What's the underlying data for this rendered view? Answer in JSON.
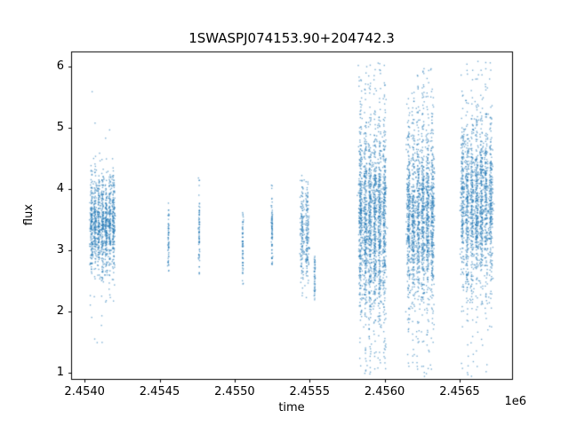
{
  "figure": {
    "background": "#ffffff"
  },
  "chart_data": {
    "type": "scatter",
    "title": "1SWASPJ074153.90+204742.3",
    "xlabel": "time",
    "ylabel": "flux",
    "x_offset_label": "1e6",
    "xlim": [
      2.45391,
      2.45685
    ],
    "ylim": [
      0.9,
      6.25
    ],
    "xticks": [
      {
        "value": 2.454,
        "label": "2.4540"
      },
      {
        "value": 2.4545,
        "label": "2.4545"
      },
      {
        "value": 2.455,
        "label": "2.4550"
      },
      {
        "value": 2.4555,
        "label": "2.4555"
      },
      {
        "value": 2.456,
        "label": "2.4560"
      },
      {
        "value": 2.4565,
        "label": "2.4565"
      }
    ],
    "yticks": [
      {
        "value": 1,
        "label": "1"
      },
      {
        "value": 2,
        "label": "2"
      },
      {
        "value": 3,
        "label": "3"
      },
      {
        "value": 4,
        "label": "4"
      },
      {
        "value": 5,
        "label": "5"
      },
      {
        "value": 6,
        "label": "6"
      }
    ],
    "marker_color": "#1f77b4",
    "marker_alpha": 0.6,
    "marker_size": 1.4,
    "seed": 7,
    "clusters": [
      {
        "x0": 2.45403,
        "x1": 2.4542,
        "stripes": 7,
        "n": 1150,
        "mean": 3.45,
        "sd": 0.4,
        "min": 1.5,
        "max": 5.65,
        "utail": 30
      },
      {
        "x0": 2.45455,
        "x1": 2.45456,
        "stripes": 1,
        "n": 55,
        "mean": 3.15,
        "sd": 0.28,
        "min": 2.65,
        "max": 3.8,
        "utail": 4
      },
      {
        "x0": 2.454755,
        "x1": 2.454765,
        "stripes": 1,
        "n": 65,
        "mean": 3.25,
        "sd": 0.35,
        "min": 2.5,
        "max": 4.35,
        "utail": 6
      },
      {
        "x0": 2.455045,
        "x1": 2.455055,
        "stripes": 1,
        "n": 60,
        "mean": 3.1,
        "sd": 0.3,
        "min": 2.45,
        "max": 3.75,
        "utail": 4
      },
      {
        "x0": 2.45524,
        "x1": 2.45525,
        "stripes": 1,
        "n": 75,
        "mean": 3.3,
        "sd": 0.33,
        "min": 2.5,
        "max": 4.1,
        "utail": 6
      },
      {
        "x0": 2.45543,
        "x1": 2.455495,
        "stripes": 2,
        "n": 260,
        "mean": 3.3,
        "sd": 0.42,
        "min": 2.2,
        "max": 4.3,
        "utail": 20
      },
      {
        "x0": 2.455525,
        "x1": 2.455535,
        "stripes": 1,
        "n": 45,
        "mean": 2.6,
        "sd": 0.22,
        "min": 2.15,
        "max": 3.0,
        "utail": 4
      },
      {
        "x0": 2.45582,
        "x1": 2.45601,
        "stripes": 6,
        "n": 1700,
        "mean": 3.5,
        "sd": 0.75,
        "min": 0.95,
        "max": 6.1,
        "utail": 230
      },
      {
        "x0": 2.45614,
        "x1": 2.45633,
        "stripes": 6,
        "n": 1550,
        "mean": 3.55,
        "sd": 0.72,
        "min": 0.95,
        "max": 6.0,
        "utail": 210
      },
      {
        "x0": 2.4565,
        "x1": 2.45672,
        "stripes": 7,
        "n": 1600,
        "mean": 3.75,
        "sd": 0.65,
        "min": 0.95,
        "max": 6.1,
        "utail": 190
      }
    ]
  }
}
